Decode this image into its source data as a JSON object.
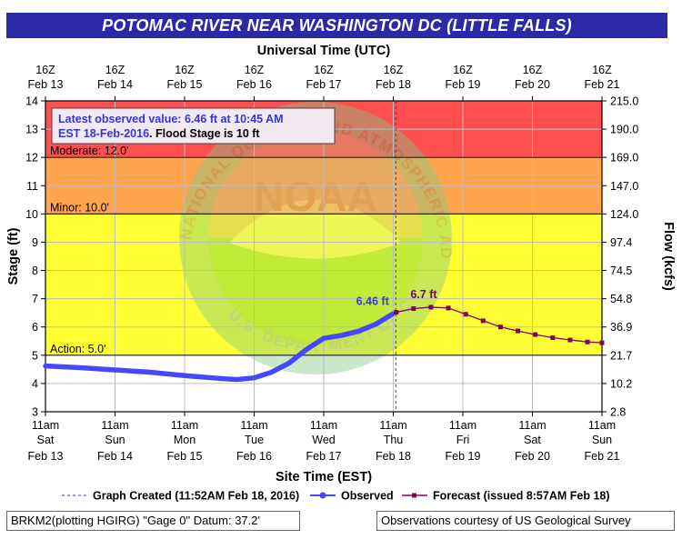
{
  "page_title": "POTOMAC RIVER NEAR WASHINGTON DC (LITTLE FALLS)",
  "footer": {
    "datum": "BRKM2(plotting HGIRG) \"Gage 0\" Datum: 37.2'",
    "courtesy": "Observations courtesy of US Geological Survey"
  },
  "chart_data": {
    "type": "line",
    "title": "POTOMAC RIVER NEAR WASHINGTON DC (LITTLE FALLS)",
    "top_axis_label": "Universal Time (UTC)",
    "top_ticks": [
      {
        "hour": "16Z",
        "date": "Feb 13"
      },
      {
        "hour": "16Z",
        "date": "Feb 14"
      },
      {
        "hour": "16Z",
        "date": "Feb 15"
      },
      {
        "hour": "16Z",
        "date": "Feb 16"
      },
      {
        "hour": "16Z",
        "date": "Feb 17"
      },
      {
        "hour": "16Z",
        "date": "Feb 18"
      },
      {
        "hour": "16Z",
        "date": "Feb 19"
      },
      {
        "hour": "16Z",
        "date": "Feb 20"
      },
      {
        "hour": "16Z",
        "date": "Feb 21"
      }
    ],
    "xlabel": "Site Time (EST)",
    "x_ticks": [
      {
        "time": "11am",
        "day": "Sat",
        "date": "Feb 13"
      },
      {
        "time": "11am",
        "day": "Sun",
        "date": "Feb 14"
      },
      {
        "time": "11am",
        "day": "Mon",
        "date": "Feb 15"
      },
      {
        "time": "11am",
        "day": "Tue",
        "date": "Feb 16"
      },
      {
        "time": "11am",
        "day": "Wed",
        "date": "Feb 17"
      },
      {
        "time": "11am",
        "day": "Thu",
        "date": "Feb 18"
      },
      {
        "time": "11am",
        "day": "Fri",
        "date": "Feb 19"
      },
      {
        "time": "11am",
        "day": "Sat",
        "date": "Feb 20"
      },
      {
        "time": "11am",
        "day": "Sun",
        "date": "Feb 21"
      }
    ],
    "xlim": [
      "2016-02-13T11:00",
      "2016-02-21T11:00"
    ],
    "ylabel": "Stage (ft)",
    "ylim": [
      3,
      14
    ],
    "y_ticks": [
      3,
      4,
      5,
      6,
      7,
      8,
      9,
      10,
      11,
      12,
      13,
      14
    ],
    "y2label": "Flow (kcfs)",
    "y2_ticks": [
      {
        "stage": 3,
        "label": "2.8"
      },
      {
        "stage": 4,
        "label": "10.2"
      },
      {
        "stage": 5,
        "label": "21.7"
      },
      {
        "stage": 6,
        "label": "36.9"
      },
      {
        "stage": 7,
        "label": "54.8"
      },
      {
        "stage": 8,
        "label": "74.5"
      },
      {
        "stage": 9,
        "label": "97.4"
      },
      {
        "stage": 10,
        "label": "124.0"
      },
      {
        "stage": 11,
        "label": "147.0"
      },
      {
        "stage": 12,
        "label": "169.0"
      },
      {
        "stage": 13,
        "label": "190.0"
      },
      {
        "stage": 14,
        "label": "215.0"
      }
    ],
    "grid": true,
    "bands": [
      {
        "name": "action",
        "from": 5,
        "to": 10,
        "color": "#ffff33"
      },
      {
        "name": "minor",
        "from": 10,
        "to": 12,
        "color": "#ffa54f"
      },
      {
        "name": "moderate",
        "from": 12,
        "to": 14,
        "color": "#ff4f4f"
      }
    ],
    "thresholds": [
      {
        "name": "moderate",
        "value": 12,
        "label": "Moderate: 12.0'"
      },
      {
        "name": "minor",
        "value": 10,
        "label": "Minor: 10.0'"
      },
      {
        "name": "action",
        "value": 5,
        "label": "Action: 5.0'"
      }
    ],
    "info_box": {
      "line1": "Latest observed value: 6.46 ft at 10:45 AM",
      "line2_a": "EST 18-Feb-2016",
      "line2_b": ". Flood Stage is 10 ft"
    },
    "graph_created": "2016-02-18T11:52",
    "series": [
      {
        "name": "Observed",
        "color": "#4646ff",
        "points": [
          [
            "2016-02-13T11:00",
            4.62
          ],
          [
            "2016-02-13T23:00",
            4.56
          ],
          [
            "2016-02-14T11:00",
            4.48
          ],
          [
            "2016-02-14T23:00",
            4.4
          ],
          [
            "2016-02-15T11:00",
            4.28
          ],
          [
            "2016-02-15T23:00",
            4.18
          ],
          [
            "2016-02-16T05:00",
            4.14
          ],
          [
            "2016-02-16T11:00",
            4.2
          ],
          [
            "2016-02-16T17:00",
            4.4
          ],
          [
            "2016-02-16T23:00",
            4.72
          ],
          [
            "2016-02-17T05:00",
            5.2
          ],
          [
            "2016-02-17T11:00",
            5.6
          ],
          [
            "2016-02-17T17:00",
            5.7
          ],
          [
            "2016-02-17T23:00",
            5.85
          ],
          [
            "2016-02-18T05:00",
            6.1
          ],
          [
            "2016-02-18T10:45",
            6.46
          ]
        ],
        "last_label": "6.46 ft"
      },
      {
        "name": "Forecast",
        "color": "#800060",
        "points": [
          [
            "2016-02-18T12:00",
            6.52
          ],
          [
            "2016-02-18T18:00",
            6.65
          ],
          [
            "2016-02-19T00:00",
            6.7
          ],
          [
            "2016-02-19T06:00",
            6.67
          ],
          [
            "2016-02-19T12:00",
            6.45
          ],
          [
            "2016-02-19T18:00",
            6.22
          ],
          [
            "2016-02-20T00:00",
            6.0
          ],
          [
            "2016-02-20T06:00",
            5.86
          ],
          [
            "2016-02-20T12:00",
            5.73
          ],
          [
            "2016-02-20T18:00",
            5.62
          ],
          [
            "2016-02-21T00:00",
            5.54
          ],
          [
            "2016-02-21T06:00",
            5.47
          ],
          [
            "2016-02-21T11:00",
            5.44
          ]
        ],
        "peak_label": "6.7 ft"
      }
    ],
    "legend": {
      "placement": "bottom",
      "graph_created": "Graph Created (11:52AM Feb 18, 2016)",
      "observed": "Observed",
      "forecast": "Forecast (issued 8:57AM Feb 18)"
    },
    "watermark": {
      "top_text": "NATIONAL OCEANIC AND ATMOSPHERIC ADMINISTRATION",
      "center_text": "NOAA",
      "bottom_text": "U.S. DEPARTMENT OF COMMERCE"
    }
  }
}
